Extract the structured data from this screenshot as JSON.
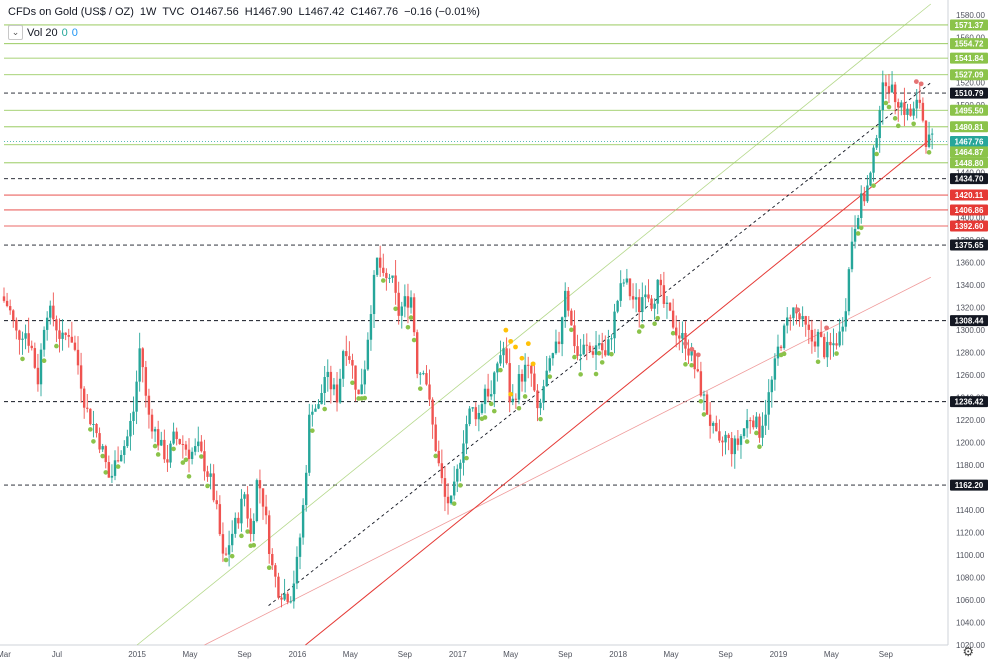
{
  "header": {
    "symbol": "CFDs on Gold (US$ / OZ)",
    "interval": "1W",
    "source": "TVC",
    "open": "O1467.56",
    "high": "H1467.90",
    "low": "L1467.42",
    "close": "C1467.76",
    "change": "−0.16 (−0.01%)"
  },
  "volume": {
    "label": "Vol 20",
    "v1": "0",
    "v2": "0"
  },
  "icons": {
    "collapse": "chevron-down-icon",
    "settings": "gear-icon"
  },
  "chart_data": {
    "type": "candlestick",
    "ylim": [
      1020,
      1590
    ],
    "y_ticks": [
      1020,
      1040,
      1060,
      1080,
      1100,
      1120,
      1140,
      1160,
      1180,
      1200,
      1220,
      1240,
      1260,
      1280,
      1300,
      1320,
      1340,
      1360,
      1380,
      1400,
      1420,
      1440,
      1460,
      1480,
      1500,
      1520,
      1540,
      1560,
      1580
    ],
    "x_labels": [
      "Mar",
      "Jul",
      "2015",
      "May",
      "Sep",
      "2016",
      "May",
      "Sep",
      "2017",
      "May",
      "Sep",
      "2018",
      "May",
      "Sep",
      "2019",
      "May",
      "Sep"
    ],
    "x_label_dates": [
      2014.17,
      2014.5,
      2015.0,
      2015.33,
      2015.67,
      2016.0,
      2016.33,
      2016.67,
      2017.0,
      2017.33,
      2017.67,
      2018.0,
      2018.33,
      2018.67,
      2019.0,
      2019.33,
      2019.67
    ],
    "xlim": [
      2014.17,
      2019.97
    ],
    "colors": {
      "up": "#26a69a",
      "down": "#ef5350",
      "green_line": "#8bc34a",
      "red_line": "#e53935",
      "dash": "#131722"
    },
    "ohlc_anchors": [
      [
        2014.17,
        1330
      ],
      [
        2014.22,
        1320
      ],
      [
        2014.27,
        1295
      ],
      [
        2014.32,
        1300
      ],
      [
        2014.36,
        1285
      ],
      [
        2014.4,
        1255
      ],
      [
        2014.45,
        1320
      ],
      [
        2014.5,
        1310
      ],
      [
        2014.55,
        1290
      ],
      [
        2014.6,
        1300
      ],
      [
        2014.65,
        1270
      ],
      [
        2014.7,
        1230
      ],
      [
        2014.75,
        1215
      ],
      [
        2014.8,
        1195
      ],
      [
        2014.85,
        1165
      ],
      [
        2014.9,
        1190
      ],
      [
        2014.95,
        1200
      ],
      [
        2015.0,
        1230
      ],
      [
        2015.04,
        1290
      ],
      [
        2015.08,
        1230
      ],
      [
        2015.13,
        1210
      ],
      [
        2015.17,
        1195
      ],
      [
        2015.21,
        1185
      ],
      [
        2015.25,
        1205
      ],
      [
        2015.3,
        1200
      ],
      [
        2015.35,
        1190
      ],
      [
        2015.4,
        1195
      ],
      [
        2015.44,
        1180
      ],
      [
        2015.48,
        1165
      ],
      [
        2015.52,
        1135
      ],
      [
        2015.56,
        1090
      ],
      [
        2015.6,
        1115
      ],
      [
        2015.64,
        1130
      ],
      [
        2015.69,
        1155
      ],
      [
        2015.73,
        1115
      ],
      [
        2015.77,
        1170
      ],
      [
        2015.81,
        1145
      ],
      [
        2015.86,
        1090
      ],
      [
        2015.9,
        1070
      ],
      [
        2015.94,
        1065
      ],
      [
        2015.98,
        1065
      ],
      [
        2016.02,
        1095
      ],
      [
        2016.06,
        1150
      ],
      [
        2016.1,
        1235
      ],
      [
        2016.15,
        1230
      ],
      [
        2016.19,
        1260
      ],
      [
        2016.23,
        1250
      ],
      [
        2016.27,
        1240
      ],
      [
        2016.31,
        1290
      ],
      [
        2016.35,
        1275
      ],
      [
        2016.4,
        1240
      ],
      [
        2016.44,
        1270
      ],
      [
        2016.48,
        1325
      ],
      [
        2016.52,
        1365
      ],
      [
        2016.56,
        1340
      ],
      [
        2016.6,
        1350
      ],
      [
        2016.65,
        1315
      ],
      [
        2016.69,
        1325
      ],
      [
        2016.73,
        1330
      ],
      [
        2016.77,
        1260
      ],
      [
        2016.81,
        1270
      ],
      [
        2016.85,
        1225
      ],
      [
        2016.9,
        1180
      ],
      [
        2016.94,
        1150
      ],
      [
        2016.98,
        1145
      ],
      [
        2017.02,
        1175
      ],
      [
        2017.06,
        1210
      ],
      [
        2017.1,
        1230
      ],
      [
        2017.15,
        1225
      ],
      [
        2017.19,
        1250
      ],
      [
        2017.23,
        1240
      ],
      [
        2017.27,
        1275
      ],
      [
        2017.31,
        1285
      ],
      [
        2017.35,
        1230
      ],
      [
        2017.4,
        1255
      ],
      [
        2017.44,
        1265
      ],
      [
        2017.48,
        1260
      ],
      [
        2017.52,
        1220
      ],
      [
        2017.56,
        1255
      ],
      [
        2017.6,
        1270
      ],
      [
        2017.65,
        1290
      ],
      [
        2017.69,
        1340
      ],
      [
        2017.73,
        1300
      ],
      [
        2017.77,
        1275
      ],
      [
        2017.81,
        1285
      ],
      [
        2017.85,
        1280
      ],
      [
        2017.9,
        1290
      ],
      [
        2017.94,
        1275
      ],
      [
        2017.98,
        1300
      ],
      [
        2018.02,
        1330
      ],
      [
        2018.06,
        1345
      ],
      [
        2018.1,
        1330
      ],
      [
        2018.15,
        1320
      ],
      [
        2018.19,
        1340
      ],
      [
        2018.23,
        1325
      ],
      [
        2018.27,
        1340
      ],
      [
        2018.31,
        1320
      ],
      [
        2018.35,
        1310
      ],
      [
        2018.4,
        1295
      ],
      [
        2018.44,
        1290
      ],
      [
        2018.48,
        1275
      ],
      [
        2018.52,
        1255
      ],
      [
        2018.56,
        1235
      ],
      [
        2018.6,
        1215
      ],
      [
        2018.65,
        1195
      ],
      [
        2018.69,
        1205
      ],
      [
        2018.73,
        1195
      ],
      [
        2018.77,
        1200
      ],
      [
        2018.81,
        1215
      ],
      [
        2018.85,
        1225
      ],
      [
        2018.9,
        1210
      ],
      [
        2018.94,
        1230
      ],
      [
        2018.98,
        1255
      ],
      [
        2019.02,
        1285
      ],
      [
        2019.06,
        1300
      ],
      [
        2019.1,
        1320
      ],
      [
        2019.15,
        1310
      ],
      [
        2019.19,
        1300
      ],
      [
        2019.23,
        1290
      ],
      [
        2019.27,
        1295
      ],
      [
        2019.31,
        1280
      ],
      [
        2019.35,
        1285
      ],
      [
        2019.4,
        1295
      ],
      [
        2019.44,
        1325
      ],
      [
        2019.48,
        1385
      ],
      [
        2019.52,
        1410
      ],
      [
        2019.56,
        1420
      ],
      [
        2019.6,
        1440
      ],
      [
        2019.65,
        1500
      ],
      [
        2019.69,
        1525
      ],
      [
        2019.73,
        1510
      ],
      [
        2019.77,
        1505
      ],
      [
        2019.81,
        1495
      ],
      [
        2019.85,
        1490
      ],
      [
        2019.9,
        1505
      ],
      [
        2019.94,
        1470
      ],
      [
        2019.97,
        1467
      ]
    ],
    "price_labels": [
      {
        "value": "1571.37",
        "y": 1571.37,
        "style": "green"
      },
      {
        "value": "1554.72",
        "y": 1554.72,
        "style": "green"
      },
      {
        "value": "1541.84",
        "y": 1541.84,
        "style": "green"
      },
      {
        "value": "1527.09",
        "y": 1527.09,
        "style": "green"
      },
      {
        "value": "1510.79",
        "y": 1510.79,
        "style": "dark"
      },
      {
        "value": "1495.50",
        "y": 1495.5,
        "style": "green"
      },
      {
        "value": "1480.81",
        "y": 1480.81,
        "style": "green"
      },
      {
        "value": "1467.76",
        "y": 1467.76,
        "style": "current"
      },
      {
        "value": "1464.87",
        "y": 1458.5,
        "style": "green"
      },
      {
        "value": "1448.80",
        "y": 1448.8,
        "style": "green"
      },
      {
        "value": "1434.70",
        "y": 1434.7,
        "style": "dark"
      },
      {
        "value": "1420.11",
        "y": 1420.11,
        "style": "red"
      },
      {
        "value": "1406.86",
        "y": 1406.86,
        "style": "red"
      },
      {
        "value": "1392.60",
        "y": 1392.6,
        "style": "red"
      },
      {
        "value": "1375.65",
        "y": 1375.65,
        "style": "dark"
      },
      {
        "value": "1308.44",
        "y": 1308.44,
        "style": "dark"
      },
      {
        "value": "1236.42",
        "y": 1236.42,
        "style": "dark"
      },
      {
        "value": "1162.20",
        "y": 1162.2,
        "style": "dark"
      }
    ],
    "h_lines": [
      {
        "y": 1571.37,
        "style": "green"
      },
      {
        "y": 1554.72,
        "style": "green"
      },
      {
        "y": 1541.84,
        "style": "green"
      },
      {
        "y": 1527.09,
        "style": "green"
      },
      {
        "y": 1510.79,
        "style": "dash"
      },
      {
        "y": 1495.5,
        "style": "green"
      },
      {
        "y": 1480.81,
        "style": "green"
      },
      {
        "y": 1467.76,
        "style": "dot"
      },
      {
        "y": 1464.87,
        "style": "green"
      },
      {
        "y": 1448.8,
        "style": "green"
      },
      {
        "y": 1434.7,
        "style": "dash"
      },
      {
        "y": 1420.11,
        "style": "red"
      },
      {
        "y": 1406.86,
        "style": "red"
      },
      {
        "y": 1392.6,
        "style": "red"
      },
      {
        "y": 1375.65,
        "style": "dash"
      },
      {
        "y": 1308.44,
        "style": "dash"
      },
      {
        "y": 1236.42,
        "style": "dash"
      },
      {
        "y": 1162.2,
        "style": "dash"
      }
    ],
    "trend_lines": [
      {
        "x1": 2015.0,
        "y1": 1020,
        "x2": 2019.95,
        "y2": 1590,
        "style": "green"
      },
      {
        "x1": 2015.82,
        "y1": 1055,
        "x2": 2019.95,
        "y2": 1520,
        "style": "dash"
      },
      {
        "x1": 2015.42,
        "y1": 1020,
        "x2": 2019.95,
        "y2": 1347,
        "style": "redthin"
      },
      {
        "x1": 2016.05,
        "y1": 1020,
        "x2": 2019.95,
        "y2": 1470,
        "style": "red"
      }
    ],
    "dots": [
      {
        "x": 2017.3,
        "y": 1300,
        "c": "orange"
      },
      {
        "x": 2017.33,
        "y": 1290,
        "c": "orange"
      },
      {
        "x": 2017.36,
        "y": 1285,
        "c": "orange"
      },
      {
        "x": 2017.4,
        "y": 1275,
        "c": "orange"
      },
      {
        "x": 2017.44,
        "y": 1288,
        "c": "orange"
      },
      {
        "x": 2017.47,
        "y": 1270,
        "c": "orange"
      },
      {
        "x": 2017.33,
        "y": 1243,
        "c": "orange"
      },
      {
        "x": 2018.42,
        "y": 1288,
        "c": "red"
      },
      {
        "x": 2018.46,
        "y": 1283,
        "c": "red"
      },
      {
        "x": 2018.5,
        "y": 1278,
        "c": "red"
      },
      {
        "x": 2019.86,
        "y": 1521,
        "c": "red"
      },
      {
        "x": 2019.89,
        "y": 1519,
        "c": "red"
      },
      {
        "x": 2019.12,
        "y": 1318,
        "c": "red"
      },
      {
        "x": 2019.3,
        "y": 1302,
        "c": "red"
      }
    ]
  }
}
